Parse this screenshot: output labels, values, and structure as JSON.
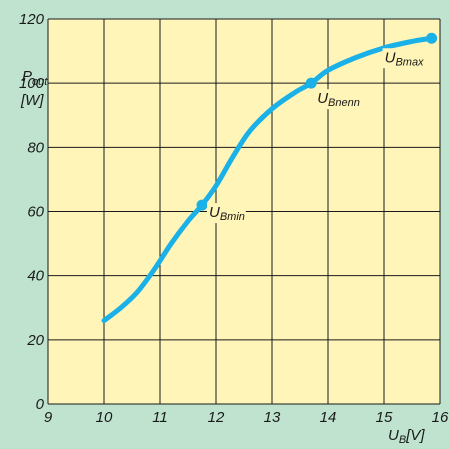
{
  "chart_data": {
    "type": "line",
    "xlim": [
      9,
      16
    ],
    "ylim": [
      0,
      120
    ],
    "xticks": [
      9,
      10,
      11,
      12,
      13,
      14,
      15,
      16
    ],
    "yticks": [
      0,
      20,
      40,
      60,
      80,
      100,
      120
    ],
    "grid": true,
    "ylabel": {
      "main": "P",
      "sub": "out",
      "unit": "[W]"
    },
    "xlabel": {
      "main": "U",
      "sub": "B",
      "unit": "[V]"
    },
    "series": [
      {
        "color": "#1ab0e8",
        "x": [
          10.0,
          10.3,
          10.6,
          10.9,
          11.2,
          11.5,
          11.75,
          12.0,
          12.3,
          12.6,
          13.0,
          13.4,
          13.7,
          14.0,
          14.5,
          15.0,
          15.5,
          15.85
        ],
        "y": [
          26,
          30,
          35,
          42,
          50,
          57,
          62,
          68,
          77,
          85,
          92,
          97,
          100,
          104,
          108,
          111,
          113,
          114
        ]
      }
    ],
    "markers": [
      {
        "x": 11.75,
        "y": 62,
        "main": "U",
        "sub": "Bmin"
      },
      {
        "x": 13.7,
        "y": 100,
        "main": "U",
        "sub": "Bnenn"
      },
      {
        "x": 15.85,
        "y": 114,
        "main": "U",
        "sub": "Bmax"
      }
    ]
  },
  "colors": {
    "plot_bg": "#fff5b8",
    "frame_bg": "#bfe3cf",
    "grid": "#1a1a1a",
    "curve": "#1ab0e8"
  }
}
